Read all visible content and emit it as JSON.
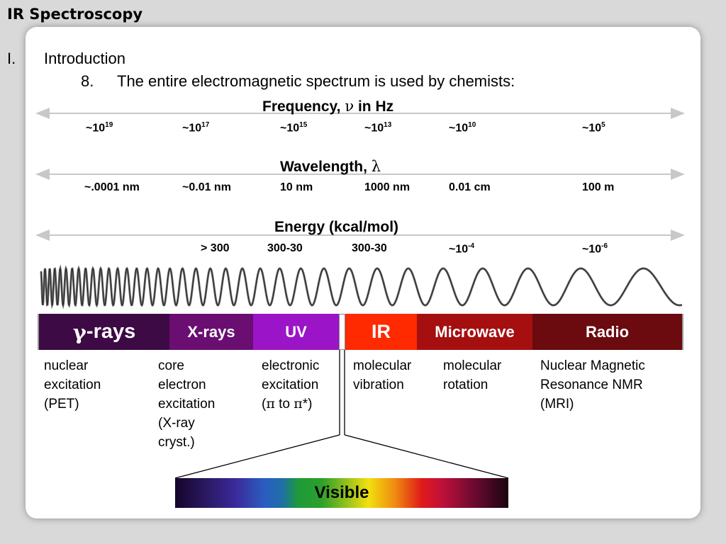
{
  "slide": {
    "title": "IR Spectroscopy"
  },
  "outline": {
    "numeral": "I.",
    "heading": "Introduction",
    "item_number": "8.",
    "item_text": "The entire electromagnetic spectrum is used by chemists:"
  },
  "axes": {
    "frequency": {
      "title": "Frequency,",
      "symbol": "ν",
      "suffix": "in Hz",
      "ticks": [
        {
          "prefix": "~10",
          "exp": "19"
        },
        {
          "prefix": "~10",
          "exp": "17"
        },
        {
          "prefix": "~10",
          "exp": "15"
        },
        {
          "prefix": "~10",
          "exp": "13"
        },
        {
          "prefix": "~10",
          "exp": "10"
        },
        {
          "prefix": "~10",
          "exp": "5"
        }
      ]
    },
    "wavelength": {
      "title": "Wavelength,",
      "symbol": "λ",
      "ticks": [
        "~.0001 nm",
        "~0.01 nm",
        "10 nm",
        "1000 nm",
        "0.01 cm",
        "100 m"
      ]
    },
    "energy": {
      "title": "Energy (kcal/mol)",
      "ticks": [
        {
          "prefix": "> 300",
          "exp": ""
        },
        {
          "prefix": "300-30",
          "exp": ""
        },
        {
          "prefix": "300-30",
          "exp": ""
        },
        {
          "prefix": "~10",
          "exp": "-4"
        },
        {
          "prefix": "~10",
          "exp": "-6"
        }
      ]
    }
  },
  "bands": [
    {
      "symbol": "γ",
      "label": "-rays",
      "color": "#3d0a45"
    },
    {
      "label": "X-rays",
      "color": "#6a0e72"
    },
    {
      "label": "UV",
      "color": "#9b14c8"
    },
    {
      "label": "IR",
      "color": "#ff2a00"
    },
    {
      "label": "Microwave",
      "color": "#a50f10"
    },
    {
      "label": "Radio",
      "color": "#6b0a0f"
    }
  ],
  "descriptions": {
    "gamma": [
      "nuclear",
      "excitation",
      "(PET)"
    ],
    "xray": [
      "core",
      "electron",
      "excitation",
      "(X-ray",
      "cryst.)"
    ],
    "uv": {
      "lines": [
        "electronic",
        "excitation"
      ],
      "pi_a": "π",
      "mid": "to",
      "pi_b": "π",
      "end": "*)"
    },
    "ir": [
      "molecular",
      "vibration"
    ],
    "microwave": [
      "molecular",
      "rotation"
    ],
    "radio": [
      "Nuclear Magnetic",
      "Resonance  NMR",
      "(MRI)"
    ]
  },
  "visible": {
    "label": "Visible"
  }
}
